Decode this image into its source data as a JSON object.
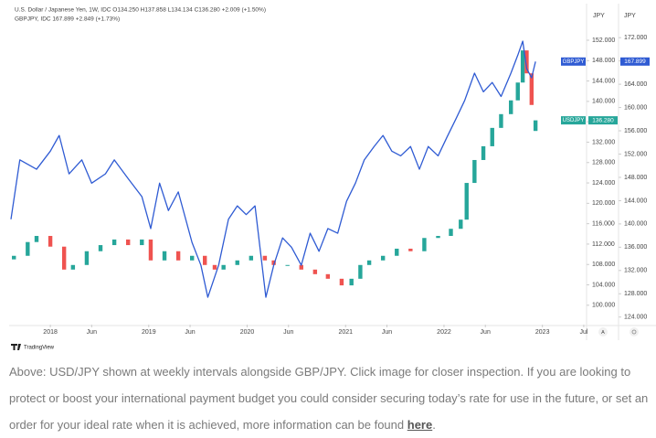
{
  "chart_data": {
    "type": "candlestick",
    "legend_lines": [
      "U.S. Dollar / Japanese Yen, 1W, IDC  O134.250 H137.858 L134.134 C136.280 +2.009 (+1.50%)",
      "GBPJPY, IDC  167.899 +2.849 (+1.73%)"
    ],
    "y_axis_unit": "JPY",
    "y2_axis_unit": "JPY",
    "xlim": [
      2017.6,
      2023.43
    ],
    "xticks": [
      {
        "value": 2018,
        "label": "2018"
      },
      {
        "value": 2018.42,
        "label": "Jun"
      },
      {
        "value": 2019,
        "label": "2019"
      },
      {
        "value": 2019.42,
        "label": "Jun"
      },
      {
        "value": 2020,
        "label": "2020"
      },
      {
        "value": 2020.42,
        "label": "Jun"
      },
      {
        "value": 2021,
        "label": "2021"
      },
      {
        "value": 2021.42,
        "label": "Jun"
      },
      {
        "value": 2022,
        "label": "2022"
      },
      {
        "value": 2022.42,
        "label": "Jun"
      },
      {
        "value": 2023,
        "label": "2023"
      },
      {
        "value": 2023.42,
        "label": "Jul"
      }
    ],
    "ylim": [
      96.2,
      158.1
    ],
    "yticks": [
      {
        "value": 100,
        "label": "100.000"
      },
      {
        "value": 104,
        "label": "104.000"
      },
      {
        "value": 108,
        "label": "108.000"
      },
      {
        "value": 112,
        "label": "112.000"
      },
      {
        "value": 116,
        "label": "116.000"
      },
      {
        "value": 120,
        "label": "120.000"
      },
      {
        "value": 124,
        "label": "124.000"
      },
      {
        "value": 128,
        "label": "128.000"
      },
      {
        "value": 132,
        "label": "132.000"
      },
      {
        "value": 136,
        "label": "136.000"
      },
      {
        "value": 140,
        "label": "140.000"
      },
      {
        "value": 144,
        "label": "144.000"
      },
      {
        "value": 148,
        "label": "148.000"
      },
      {
        "value": 152,
        "label": "152.000"
      }
    ],
    "y2lim": [
      122.7,
      176.9
    ],
    "y2ticks": [
      {
        "value": 124,
        "label": "124.000"
      },
      {
        "value": 128,
        "label": "128.000"
      },
      {
        "value": 132,
        "label": "132.000"
      },
      {
        "value": 136,
        "label": "136.000"
      },
      {
        "value": 140,
        "label": "140.000"
      },
      {
        "value": 144,
        "label": "144.000"
      },
      {
        "value": 148,
        "label": "148.000"
      },
      {
        "value": 152,
        "label": "152.000"
      },
      {
        "value": 156,
        "label": "156.000"
      },
      {
        "value": 160,
        "label": "160.000"
      },
      {
        "value": 164,
        "label": "164.000"
      },
      {
        "value": 168,
        "label": "168.000"
      },
      {
        "value": 172,
        "label": "172.000"
      }
    ],
    "series": [
      {
        "name": "USDJPY",
        "type": "candlestick",
        "axis": "y",
        "color": "#26a69a",
        "down_color": "#ef5350",
        "last_price": {
          "value": 136.28,
          "label": "136.280"
        },
        "x": [
          2017.63,
          2017.77,
          2017.86,
          2018.0,
          2018.14,
          2018.23,
          2018.37,
          2018.51,
          2018.65,
          2018.79,
          2018.93,
          2019.02,
          2019.16,
          2019.3,
          2019.44,
          2019.57,
          2019.67,
          2019.76,
          2019.9,
          2020.04,
          2020.18,
          2020.27,
          2020.41,
          2020.55,
          2020.69,
          2020.82,
          2020.96,
          2021.06,
          2021.15,
          2021.24,
          2021.38,
          2021.52,
          2021.66,
          2021.8,
          2021.94,
          2022.07,
          2022.17,
          2022.23,
          2022.31,
          2022.4,
          2022.49,
          2022.58,
          2022.68,
          2022.75,
          2022.8,
          2022.84,
          2022.89,
          2022.93
        ],
        "open": [
          109.0,
          109.7,
          112.4,
          113.6,
          111.5,
          107.0,
          107.9,
          110.6,
          111.8,
          112.9,
          111.8,
          112.9,
          108.8,
          110.6,
          108.8,
          109.7,
          107.9,
          107.0,
          107.9,
          108.8,
          109.7,
          108.8,
          107.9,
          107.9,
          107.0,
          106.1,
          105.2,
          103.9,
          105.2,
          107.9,
          108.8,
          109.7,
          111.1,
          110.6,
          113.2,
          113.6,
          115.0,
          116.8,
          124.0,
          128.5,
          131.2,
          134.8,
          137.5,
          140.2,
          143.7,
          150.0,
          145.5,
          134.2
        ],
        "values": [
          109.7,
          112.4,
          113.6,
          111.5,
          107.0,
          107.9,
          110.6,
          111.8,
          112.9,
          111.8,
          112.9,
          108.8,
          110.6,
          108.8,
          109.7,
          107.9,
          107.0,
          107.9,
          108.8,
          109.7,
          108.8,
          107.9,
          107.9,
          107.0,
          106.1,
          105.2,
          103.9,
          105.2,
          107.9,
          108.8,
          109.7,
          111.1,
          110.6,
          113.2,
          113.6,
          115.0,
          116.8,
          124.0,
          128.5,
          131.2,
          134.8,
          137.5,
          140.2,
          143.7,
          150.0,
          145.5,
          139.3,
          136.28
        ]
      },
      {
        "name": "GBPJPY",
        "type": "line",
        "axis": "y2",
        "color": "#2f5bd3",
        "last_price": {
          "value": 167.899,
          "label": "167.899"
        },
        "x": [
          2017.6,
          2017.69,
          2017.86,
          2018.0,
          2018.09,
          2018.19,
          2018.32,
          2018.42,
          2018.56,
          2018.65,
          2018.79,
          2018.93,
          2019.02,
          2019.11,
          2019.2,
          2019.3,
          2019.44,
          2019.53,
          2019.6,
          2019.71,
          2019.81,
          2019.9,
          2019.99,
          2020.08,
          2020.19,
          2020.27,
          2020.36,
          2020.45,
          2020.55,
          2020.64,
          2020.73,
          2020.82,
          2020.92,
          2021.01,
          2021.1,
          2021.19,
          2021.29,
          2021.38,
          2021.47,
          2021.56,
          2021.66,
          2021.75,
          2021.84,
          2021.94,
          2022.03,
          2022.12,
          2022.21,
          2022.31,
          2022.4,
          2022.49,
          2022.58,
          2022.68,
          2022.75,
          2022.8,
          2022.84,
          2022.89,
          2022.93
        ],
        "values": [
          140.8,
          151.0,
          149.4,
          152.5,
          155.2,
          148.6,
          151.0,
          147.0,
          148.6,
          151.0,
          147.8,
          144.7,
          139.2,
          147.0,
          142.3,
          145.5,
          136.8,
          132.9,
          127.4,
          132.9,
          140.8,
          143.1,
          141.6,
          143.1,
          127.4,
          132.9,
          137.6,
          136.0,
          132.9,
          138.4,
          135.3,
          139.2,
          138.4,
          143.9,
          147.0,
          151.0,
          153.3,
          155.2,
          152.5,
          151.7,
          153.3,
          149.4,
          153.3,
          151.7,
          154.9,
          158.0,
          161.2,
          165.9,
          162.7,
          164.3,
          161.9,
          165.9,
          169.0,
          171.4,
          166.7,
          165.1,
          167.899
        ]
      }
    ],
    "logo_text": "TradingView",
    "scale_button": "A"
  },
  "caption": {
    "text": "Above: USD/JPY shown at weekly intervals alongside GBP/JPY. Click image for closer inspection. If you are looking to protect or boost your international payment budget you could consider securing today’s rate for use in the future, or set an order for your ideal rate when it is achieved, more information can be found ",
    "link": "here",
    "end": "."
  }
}
